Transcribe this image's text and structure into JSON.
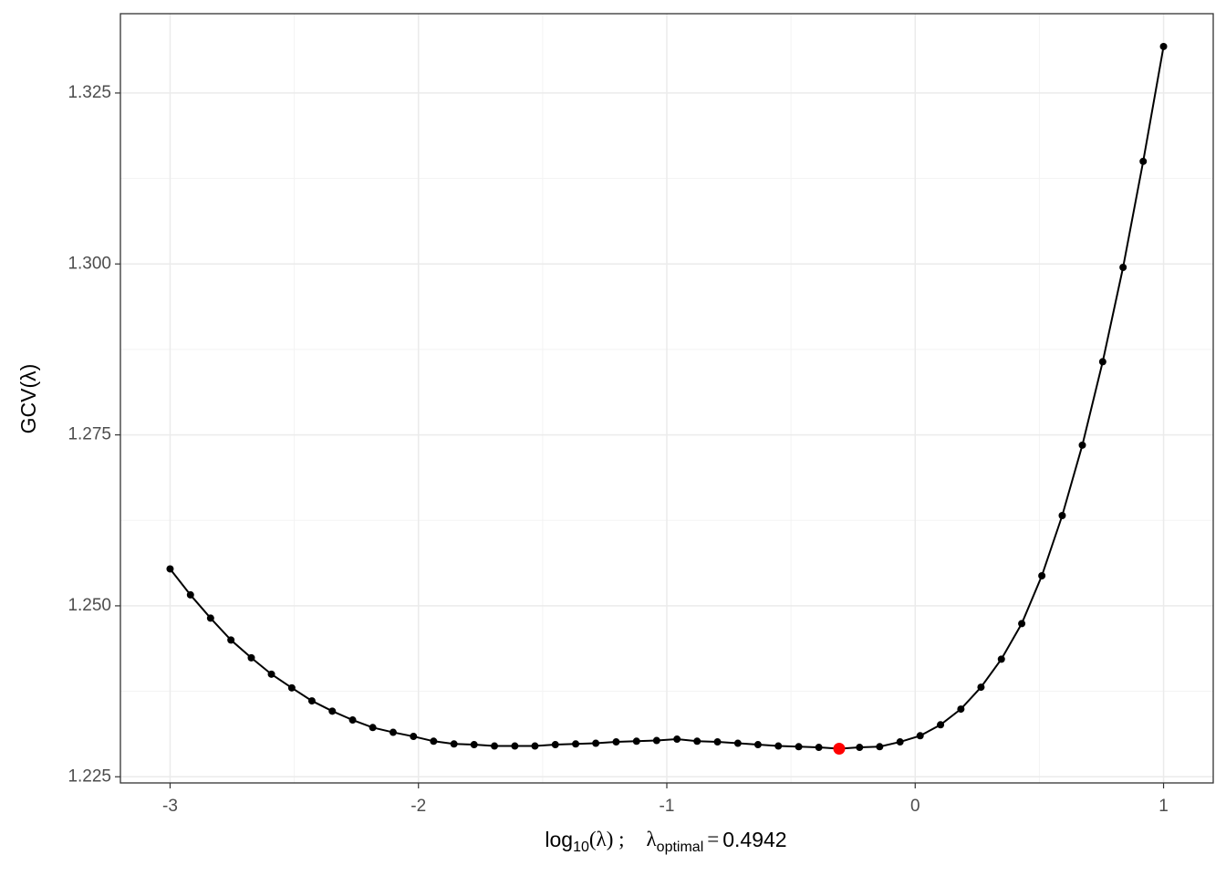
{
  "chart_data": {
    "type": "line",
    "x": [
      -3,
      -2.918,
      -2.837,
      -2.755,
      -2.673,
      -2.592,
      -2.51,
      -2.429,
      -2.347,
      -2.265,
      -2.184,
      -2.102,
      -2.02,
      -1.939,
      -1.857,
      -1.776,
      -1.694,
      -1.612,
      -1.531,
      -1.449,
      -1.367,
      -1.286,
      -1.204,
      -1.122,
      -1.041,
      -0.959,
      -0.878,
      -0.796,
      -0.714,
      -0.633,
      -0.551,
      -0.469,
      -0.388,
      -0.306,
      -0.224,
      -0.143,
      -0.061,
      0.02,
      0.102,
      0.184,
      0.265,
      0.347,
      0.429,
      0.51,
      0.592,
      0.673,
      0.755,
      0.837,
      0.918,
      1
    ],
    "values": [
      1.2554,
      1.2516,
      1.2482,
      1.245,
      1.2424,
      1.24,
      1.238,
      1.2361,
      1.2346,
      1.2333,
      1.2322,
      1.2315,
      1.2309,
      1.2302,
      1.2298,
      1.2297,
      1.2295,
      1.2295,
      1.2295,
      1.2297,
      1.2298,
      1.2299,
      1.2301,
      1.2302,
      1.2303,
      1.2305,
      1.2302,
      1.2301,
      1.2299,
      1.2297,
      1.2295,
      1.2294,
      1.2293,
      1.2291,
      1.2293,
      1.2294,
      1.2301,
      1.231,
      1.2326,
      1.2349,
      1.2381,
      1.2422,
      1.2474,
      1.2544,
      1.2632,
      1.2735,
      1.2857,
      1.2995,
      1.315,
      1.3318
    ],
    "color": "#000000",
    "highlight": {
      "x": [
        -0.306
      ],
      "values": [
        1.2291
      ],
      "color": "#ff0000"
    },
    "xlim": [
      -3.2,
      1.2
    ],
    "ylim": [
      1.2241,
      1.3366
    ],
    "xticks": [
      -3,
      -2,
      -1,
      0,
      1
    ],
    "yticks": [
      1.225,
      {
        "value": 1.25,
        "label": "1.250"
      },
      1.275,
      {
        "value": 1.3,
        "label": "1.300"
      },
      1.325
    ],
    "grid": true,
    "y_label": "GCV(λ)",
    "x_label": [
      "log",
      "10",
      "(λ) ;",
      "λ",
      "optimal",
      "=",
      "0.4942"
    ]
  }
}
